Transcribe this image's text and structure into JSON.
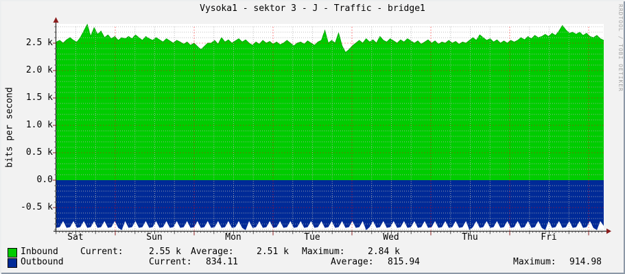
{
  "title": "Vysoka1 - sektor 3 - J - Traffic - bridge1",
  "watermark": "RRDTOOL / TOBI OETIKER",
  "y_axis": {
    "label": "bits per second",
    "ticks": [
      "2.5 k",
      "2.0 k",
      "1.5 k",
      "1.0 k",
      "0.5 k",
      "0.0",
      "-0.5 k"
    ]
  },
  "x_axis": {
    "labels": [
      "Sat",
      "Sun",
      "Mon",
      "Tue",
      "Wed",
      "Thu",
      "Fri"
    ]
  },
  "legend": {
    "rows": [
      {
        "name": "Inbound",
        "swatch_color": "#00cc00",
        "stats": [
          {
            "label": "Current:",
            "value": "2.55 k"
          },
          {
            "label": "Average:",
            "value": "2.51 k"
          },
          {
            "label": "Maximum:",
            "value": "2.84 k"
          }
        ]
      },
      {
        "name": "Outbound",
        "swatch_color": "#002a97",
        "stats": [
          {
            "label": "Current:",
            "value": "834.11"
          },
          {
            "label": "Average:",
            "value": "815.94"
          },
          {
            "label": "Maximum:",
            "value": "914.98"
          }
        ]
      }
    ]
  },
  "colors": {
    "background": "#f2f2f2",
    "canvas": "#ffffff",
    "inbound": "#00cc00",
    "inbound_edge": "#00a800",
    "outbound": "#002a97",
    "grid_minor": "#b4b4b4",
    "grid_major": "#ff0000",
    "axis": "#2b2b2b",
    "arrow": "#8b1d1d"
  },
  "chart_data": {
    "type": "area",
    "title": "Vysoka1 - sektor 3 - J - Traffic - bridge1",
    "ylabel": "bits per second",
    "ylim": [
      -0.925,
      2.8
    ],
    "y_unit": "k bits per second",
    "x_span": "1 week (Sat through Fri)",
    "x_categories": [
      "Sat",
      "Sun",
      "Mon",
      "Tue",
      "Wed",
      "Thu",
      "Fri"
    ],
    "y_tick_values_k": [
      2.5,
      2.0,
      1.5,
      1.0,
      0.5,
      0.0,
      -0.5
    ],
    "grid": {
      "minor_step_k": 0.1,
      "major_step_k": 0.5,
      "x_minor_hours": 6,
      "x_major": "midnight"
    },
    "legend_position": "bottom-left",
    "series": [
      {
        "name": "Inbound",
        "color": "#00cc00",
        "values_k": [
          2.52,
          2.55,
          2.5,
          2.56,
          2.6,
          2.55,
          2.52,
          2.6,
          2.72,
          2.84,
          2.62,
          2.78,
          2.66,
          2.72,
          2.6,
          2.65,
          2.58,
          2.62,
          2.55,
          2.6,
          2.58,
          2.62,
          2.58,
          2.65,
          2.6,
          2.55,
          2.62,
          2.58,
          2.55,
          2.6,
          2.56,
          2.52,
          2.58,
          2.54,
          2.5,
          2.55,
          2.52,
          2.48,
          2.52,
          2.46,
          2.5,
          2.44,
          2.38,
          2.44,
          2.5,
          2.5,
          2.55,
          2.48,
          2.6,
          2.52,
          2.56,
          2.5,
          2.54,
          2.58,
          2.52,
          2.56,
          2.5,
          2.46,
          2.52,
          2.48,
          2.55,
          2.5,
          2.53,
          2.48,
          2.52,
          2.47,
          2.5,
          2.55,
          2.5,
          2.45,
          2.5,
          2.52,
          2.48,
          2.54,
          2.5,
          2.46,
          2.52,
          2.55,
          2.73,
          2.5,
          2.55,
          2.5,
          2.68,
          2.45,
          2.33,
          2.38,
          2.45,
          2.5,
          2.55,
          2.5,
          2.58,
          2.52,
          2.56,
          2.5,
          2.62,
          2.55,
          2.52,
          2.58,
          2.54,
          2.5,
          2.56,
          2.52,
          2.58,
          2.54,
          2.5,
          2.54,
          2.48,
          2.52,
          2.56,
          2.5,
          2.54,
          2.48,
          2.52,
          2.5,
          2.55,
          2.5,
          2.53,
          2.48,
          2.52,
          2.5,
          2.55,
          2.6,
          2.55,
          2.65,
          2.6,
          2.55,
          2.58,
          2.52,
          2.56,
          2.5,
          2.54,
          2.5,
          2.55,
          2.52,
          2.55,
          2.6,
          2.56,
          2.62,
          2.58,
          2.64,
          2.6,
          2.62,
          2.66,
          2.62,
          2.68,
          2.64,
          2.72,
          2.82,
          2.74,
          2.68,
          2.7,
          2.66,
          2.7,
          2.64,
          2.68,
          2.62,
          2.6,
          2.64,
          2.58,
          2.55
        ]
      },
      {
        "name": "Outbound",
        "color": "#002a97",
        "values_k": [
          -0.87,
          -0.858,
          -0.748,
          -0.87,
          -0.858,
          -0.748,
          -0.87,
          -0.858,
          -0.748,
          -0.87,
          -0.858,
          -0.748,
          -0.87,
          -0.858,
          -0.748,
          -0.87,
          -0.858,
          -0.748,
          -0.87,
          -0.912,
          -0.748,
          -0.87,
          -0.858,
          -0.748,
          -0.87,
          -0.858,
          -0.748,
          -0.87,
          -0.858,
          -0.748,
          -0.87,
          -0.858,
          -0.748,
          -0.87,
          -0.858,
          -0.748,
          -0.87,
          -0.858,
          -0.748,
          -0.87,
          -0.858,
          -0.748,
          -0.87,
          -0.858,
          -0.748,
          -0.87,
          -0.858,
          -0.748,
          -0.87,
          -0.858,
          -0.748,
          -0.87,
          -0.858,
          -0.748,
          -0.87,
          -0.912,
          -0.748,
          -0.87,
          -0.858,
          -0.748,
          -0.87,
          -0.858,
          -0.748,
          -0.87,
          -0.858,
          -0.748,
          -0.87,
          -0.858,
          -0.748,
          -0.87,
          -0.858,
          -0.748,
          -0.87,
          -0.858,
          -0.748,
          -0.87,
          -0.858,
          -0.748,
          -0.87,
          -0.858,
          -0.748,
          -0.87,
          -0.858,
          -0.748,
          -0.87,
          -0.858,
          -0.748,
          -0.87,
          -0.858,
          -0.748,
          -0.912,
          -0.858,
          -0.748,
          -0.87,
          -0.858,
          -0.748,
          -0.87,
          -0.858,
          -0.748,
          -0.87,
          -0.858,
          -0.748,
          -0.87,
          -0.858,
          -0.748,
          -0.87,
          -0.858,
          -0.748,
          -0.87,
          -0.858,
          -0.748,
          -0.87,
          -0.858,
          -0.748,
          -0.87,
          -0.858,
          -0.748,
          -0.87,
          -0.858,
          -0.748,
          -0.912,
          -0.858,
          -0.748,
          -0.87,
          -0.858,
          -0.748,
          -0.87,
          -0.858,
          -0.748,
          -0.87,
          -0.858,
          -0.748,
          -0.87,
          -0.858,
          -0.748,
          -0.87,
          -0.858,
          -0.748,
          -0.87,
          -0.858,
          -0.748,
          -0.87,
          -0.912,
          -0.748,
          -0.87,
          -0.858,
          -0.748,
          -0.87,
          -0.858,
          -0.748,
          -0.87,
          -0.858,
          -0.748,
          -0.87,
          -0.858,
          -0.748,
          -0.87,
          -0.912,
          -0.748,
          -0.834
        ]
      }
    ],
    "stats": {
      "inbound": {
        "current": "2.55 k",
        "average": "2.51 k",
        "maximum": "2.84 k"
      },
      "outbound": {
        "current": "834.11",
        "average": "815.94",
        "maximum": "914.98"
      }
    }
  }
}
